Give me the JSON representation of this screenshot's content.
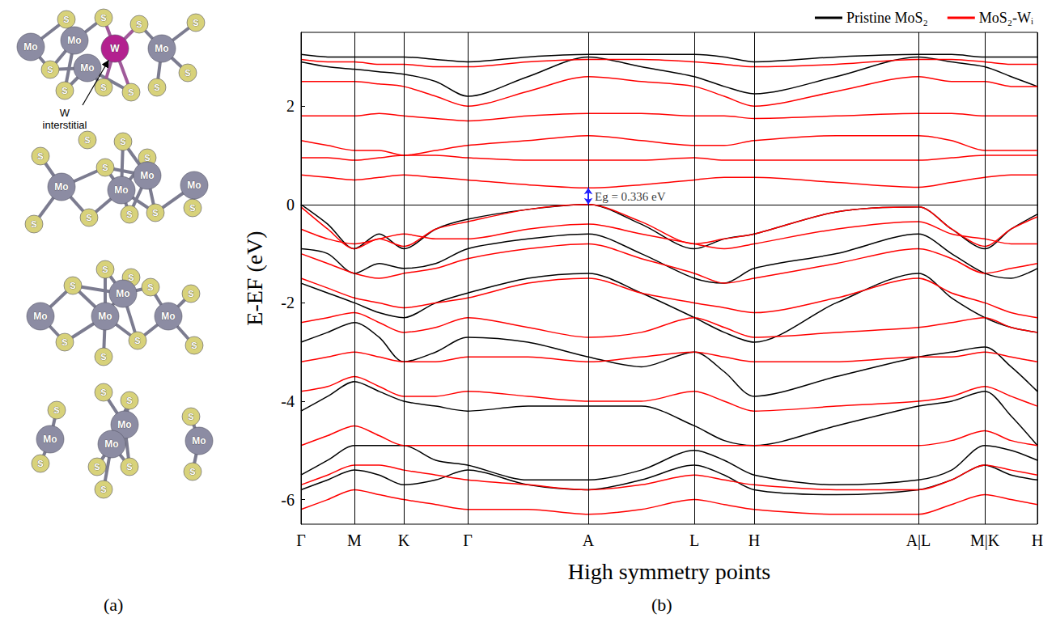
{
  "structure_panel": {
    "panel": "(a)",
    "annotation": "W interstitial",
    "structures": [
      [
        "S",
        "S",
        "S",
        "S",
        "S",
        "S",
        "S",
        "S",
        "S",
        "S",
        "Mo",
        "Mo",
        "Mo",
        "Mo",
        "W"
      ],
      [
        "S",
        "S",
        "S",
        "S",
        "S",
        "S",
        "S",
        "S",
        "S",
        "S",
        "Mo",
        "Mo",
        "Mo",
        "Mo"
      ],
      [
        "S",
        "S",
        "S",
        "S",
        "S",
        "S",
        "S",
        "S",
        "S",
        "Mo",
        "Mo",
        "Mo",
        "Mo"
      ],
      [
        "S",
        "S",
        "S",
        "S",
        "S",
        "S",
        "S",
        "S",
        "S",
        "Mo",
        "Mo",
        "Mo",
        "Mo"
      ]
    ]
  },
  "chart_data": {
    "type": "line",
    "panel": "(b)",
    "xlabel": "High symmetry points",
    "ylabel": "E-EF (eV)",
    "x": [
      0,
      0.33,
      0.66,
      0.965,
      1.27,
      1.665,
      2.06,
      2.805,
      3.55,
      4.205,
      4.86,
      5.23,
      5.6,
      6.615,
      7.63,
      8.04,
      8.45,
      8.775,
      9.1
    ],
    "xlim": [
      0,
      9.1
    ],
    "xticks": [
      {
        "value": 0,
        "label": "Γ"
      },
      {
        "value": 0.66,
        "label": "M"
      },
      {
        "value": 1.27,
        "label": "K"
      },
      {
        "value": 2.06,
        "label": "Γ"
      },
      {
        "value": 3.55,
        "label": "A"
      },
      {
        "value": 4.86,
        "label": "L"
      },
      {
        "value": 5.6,
        "label": "H"
      },
      {
        "value": 7.63,
        "label": "A|L"
      },
      {
        "value": 8.45,
        "label": "M|K"
      },
      {
        "value": 9.1,
        "label": "H"
      }
    ],
    "ylim": [
      -6.5,
      3.5
    ],
    "yticks": [
      -6,
      -4,
      -2,
      0,
      2
    ],
    "grid": "x",
    "legend": "top right",
    "series": [
      {
        "name": "Pristine MoS₂",
        "color": "#000000",
        "values": [
          [
            3.05,
            3.0,
            3.0,
            3.0,
            3.0,
            2.95,
            2.9,
            3.0,
            3.05,
            3.05,
            3.05,
            3.0,
            2.9,
            3.0,
            3.05,
            3.05,
            3.0,
            3.0,
            3.0
          ],
          [
            2.9,
            2.8,
            2.75,
            2.7,
            2.65,
            2.5,
            2.2,
            2.6,
            3.0,
            2.8,
            2.6,
            2.4,
            2.25,
            2.6,
            3.0,
            2.9,
            2.8,
            2.6,
            2.4
          ],
          [
            0,
            -0.4,
            -0.9,
            -0.6,
            -0.9,
            -0.5,
            -0.3,
            -0.1,
            0,
            -0.4,
            -0.9,
            -0.7,
            -0.6,
            -0.15,
            -0.05,
            -0.5,
            -0.9,
            -0.5,
            -0.2
          ],
          [
            -0.9,
            -1.0,
            -1.4,
            -1.2,
            -1.3,
            -1.2,
            -0.9,
            -0.7,
            -0.6,
            -1.0,
            -1.5,
            -1.6,
            -1.3,
            -1.0,
            -0.6,
            -1.0,
            -1.4,
            -1.5,
            -1.3
          ],
          [
            -1.6,
            -1.8,
            -2.0,
            -2.2,
            -2.3,
            -2.0,
            -1.8,
            -1.5,
            -1.4,
            -1.8,
            -2.3,
            -2.6,
            -2.8,
            -2.0,
            -1.4,
            -1.9,
            -2.3,
            -2.5,
            -2.6
          ],
          [
            -2.8,
            -2.6,
            -2.4,
            -2.7,
            -3.2,
            -3.0,
            -2.7,
            -2.8,
            -3.1,
            -3.3,
            -3.0,
            -3.4,
            -3.9,
            -3.5,
            -3.1,
            -3.0,
            -2.9,
            -3.3,
            -3.8
          ],
          [
            -4.2,
            -3.9,
            -3.6,
            -3.8,
            -4.0,
            -4.1,
            -4.2,
            -4.1,
            -4.1,
            -4.1,
            -4.5,
            -4.8,
            -4.9,
            -4.5,
            -4.1,
            -4.0,
            -3.8,
            -4.3,
            -4.9
          ],
          [
            -5.5,
            -5.2,
            -4.9,
            -4.9,
            -4.9,
            -5.2,
            -5.3,
            -5.6,
            -5.6,
            -5.4,
            -5.0,
            -5.2,
            -5.5,
            -5.7,
            -5.6,
            -5.4,
            -4.9,
            -5.0,
            -5.2
          ],
          [
            -5.8,
            -5.6,
            -5.4,
            -5.5,
            -5.7,
            -5.6,
            -5.4,
            -5.7,
            -5.8,
            -5.6,
            -5.3,
            -5.5,
            -5.8,
            -5.9,
            -5.8,
            -5.6,
            -5.3,
            -5.5,
            -5.6
          ]
        ]
      },
      {
        "name": "MoS₂-Wᵢ",
        "color": "#ff0000",
        "values": [
          [
            2.95,
            2.9,
            2.9,
            2.85,
            2.85,
            2.8,
            2.8,
            2.9,
            2.95,
            2.95,
            2.9,
            2.85,
            2.8,
            2.85,
            2.95,
            2.95,
            2.9,
            2.85,
            2.85
          ],
          [
            2.5,
            2.5,
            2.5,
            2.45,
            2.4,
            2.2,
            2.0,
            2.3,
            2.6,
            2.5,
            2.4,
            2.2,
            2.0,
            2.3,
            2.6,
            2.5,
            2.5,
            2.4,
            2.4
          ],
          [
            1.8,
            1.8,
            1.8,
            1.85,
            1.8,
            1.75,
            1.7,
            1.8,
            1.85,
            1.85,
            1.8,
            1.8,
            1.75,
            1.8,
            1.85,
            1.85,
            1.8,
            1.8,
            1.8
          ],
          [
            1.3,
            1.2,
            1.1,
            1.1,
            1.0,
            1.1,
            1.2,
            1.3,
            1.4,
            1.3,
            1.2,
            1.2,
            1.3,
            1.4,
            1.4,
            1.3,
            1.1,
            1.1,
            1.1
          ],
          [
            0.95,
            0.95,
            0.9,
            0.95,
            1.0,
            1.0,
            0.95,
            0.9,
            0.9,
            0.9,
            0.95,
            0.9,
            0.9,
            0.9,
            0.9,
            0.95,
            1.0,
            1.0,
            1.0
          ],
          [
            0.6,
            0.55,
            0.5,
            0.55,
            0.6,
            0.55,
            0.5,
            0.4,
            0.336,
            0.4,
            0.5,
            0.55,
            0.55,
            0.45,
            0.35,
            0.45,
            0.55,
            0.6,
            0.6
          ],
          [
            -0.05,
            -0.5,
            -0.9,
            -0.7,
            -0.85,
            -0.5,
            -0.35,
            -0.1,
            0,
            -0.35,
            -0.8,
            -0.7,
            -0.6,
            -0.15,
            -0.05,
            -0.5,
            -0.85,
            -0.5,
            -0.25
          ],
          [
            -0.5,
            -0.7,
            -0.8,
            -0.7,
            -0.6,
            -0.7,
            -0.7,
            -0.5,
            -0.4,
            -0.6,
            -0.8,
            -0.9,
            -0.8,
            -0.5,
            -0.35,
            -0.6,
            -0.7,
            -0.8,
            -0.8
          ],
          [
            -1.0,
            -1.2,
            -1.4,
            -1.5,
            -1.4,
            -1.3,
            -1.1,
            -0.9,
            -0.8,
            -1.1,
            -1.4,
            -1.6,
            -1.5,
            -1.2,
            -0.9,
            -1.1,
            -1.4,
            -1.3,
            -1.2
          ],
          [
            -1.5,
            -1.7,
            -1.9,
            -2.0,
            -2.1,
            -2.0,
            -1.9,
            -1.6,
            -1.5,
            -1.8,
            -2.0,
            -2.1,
            -2.2,
            -1.9,
            -1.5,
            -1.8,
            -2.0,
            -2.2,
            -2.3
          ],
          [
            -2.4,
            -2.3,
            -2.2,
            -2.4,
            -2.6,
            -2.5,
            -2.3,
            -2.5,
            -2.7,
            -2.6,
            -2.3,
            -2.5,
            -2.7,
            -2.6,
            -2.5,
            -2.4,
            -2.3,
            -2.5,
            -2.6
          ],
          [
            -3.2,
            -3.1,
            -3.0,
            -3.1,
            -3.2,
            -3.2,
            -3.1,
            -3.1,
            -3.2,
            -3.1,
            -3.0,
            -3.1,
            -3.2,
            -3.2,
            -3.1,
            -3.1,
            -3.0,
            -3.1,
            -3.2
          ],
          [
            -3.8,
            -3.7,
            -3.5,
            -3.7,
            -3.9,
            -3.9,
            -3.8,
            -3.9,
            -4.0,
            -4.0,
            -3.8,
            -4.0,
            -4.2,
            -4.1,
            -4.0,
            -3.9,
            -3.7,
            -3.9,
            -4.1
          ],
          [
            -4.9,
            -4.7,
            -4.5,
            -4.7,
            -4.9,
            -4.9,
            -4.9,
            -4.9,
            -4.9,
            -4.9,
            -4.9,
            -4.9,
            -4.9,
            -4.9,
            -4.9,
            -4.8,
            -4.6,
            -4.8,
            -4.9
          ],
          [
            -5.7,
            -5.5,
            -5.3,
            -5.3,
            -5.4,
            -5.5,
            -5.6,
            -5.7,
            -5.8,
            -5.7,
            -5.5,
            -5.6,
            -5.7,
            -5.8,
            -5.8,
            -5.6,
            -5.3,
            -5.4,
            -5.5
          ],
          [
            -6.2,
            -6.0,
            -5.8,
            -5.9,
            -6.0,
            -6.1,
            -6.2,
            -6.2,
            -6.3,
            -6.2,
            -6.0,
            -6.1,
            -6.2,
            -6.3,
            -6.3,
            -6.1,
            -5.9,
            -6.0,
            -6.1
          ]
        ]
      }
    ],
    "annotations": [
      {
        "text": "Eg = 0.336 eV",
        "x": 3.55,
        "y": [
          0,
          0.336
        ],
        "color": "#1f1fff"
      }
    ]
  }
}
